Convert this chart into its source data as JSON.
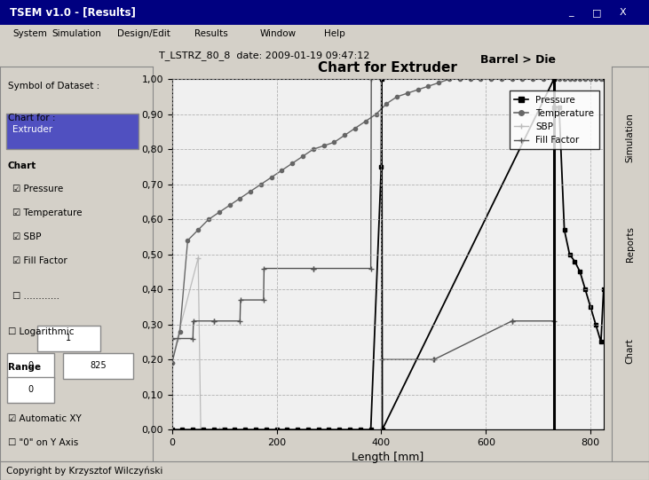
{
  "title": "Chart for Extruder",
  "subtitle": "T_LSTRZ_80_8  date: 2009-01-19 09:47:12",
  "xlabel": "Length [mm]",
  "barrel_die_label": "Barrel > Die",
  "barrel_line_x": 730,
  "xlim": [
    0,
    825
  ],
  "ylim": [
    0.0,
    1.0
  ],
  "yticks": [
    0.0,
    0.1,
    0.2,
    0.3,
    0.4,
    0.5,
    0.6,
    0.7,
    0.8,
    0.9,
    1.0
  ],
  "ytick_labels": [
    "0,00",
    "0,10",
    "0,20",
    "0,30",
    "0,40",
    "0,50",
    "0,60",
    "0,70",
    "0,80",
    "0,90",
    "1,00"
  ],
  "xticks": [
    0,
    200,
    400,
    600,
    800
  ],
  "bg_color": "#d4d0c8",
  "plot_bg_color": "#f0f0f0",
  "grid_color": "#aaaaaa",
  "pressure_color": "#000000",
  "temperature_color": "#666666",
  "sbp_color": "#bbbbbb",
  "fill_factor_color": "#555555",
  "pressure_x": [
    0,
    20,
    40,
    60,
    80,
    100,
    120,
    140,
    160,
    180,
    200,
    220,
    240,
    260,
    280,
    300,
    320,
    340,
    360,
    380,
    400,
    401,
    402,
    730,
    731,
    740,
    750,
    760,
    770,
    780,
    790,
    800,
    810,
    820,
    825
  ],
  "pressure_y": [
    0.0,
    0.0,
    0.0,
    0.0,
    0.0,
    0.0,
    0.0,
    0.0,
    0.0,
    0.0,
    0.0,
    0.0,
    0.0,
    0.0,
    0.0,
    0.0,
    0.0,
    0.0,
    0.0,
    0.0,
    0.75,
    1.0,
    0.0,
    1.0,
    0.92,
    0.92,
    0.57,
    0.5,
    0.48,
    0.45,
    0.4,
    0.35,
    0.3,
    0.25,
    0.4
  ],
  "temperature_x": [
    0,
    15,
    30,
    50,
    70,
    90,
    110,
    130,
    150,
    170,
    190,
    210,
    230,
    250,
    270,
    290,
    310,
    330,
    350,
    370,
    390,
    410,
    430,
    450,
    470,
    490,
    510,
    530,
    550,
    570,
    590,
    610,
    630,
    650,
    670,
    690,
    710,
    730,
    740,
    750,
    760,
    770,
    780,
    790,
    800,
    810,
    820,
    825
  ],
  "temperature_y": [
    0.19,
    0.28,
    0.54,
    0.57,
    0.6,
    0.62,
    0.64,
    0.66,
    0.68,
    0.7,
    0.72,
    0.74,
    0.76,
    0.78,
    0.8,
    0.81,
    0.82,
    0.84,
    0.86,
    0.88,
    0.9,
    0.93,
    0.95,
    0.96,
    0.97,
    0.98,
    0.99,
    1.0,
    1.0,
    1.0,
    1.0,
    1.0,
    1.0,
    1.0,
    1.0,
    1.0,
    1.0,
    1.0,
    1.0,
    1.0,
    1.0,
    1.0,
    1.0,
    1.0,
    1.0,
    1.0,
    1.0,
    1.0
  ],
  "sbp_x": [
    0,
    10,
    50,
    55,
    90,
    95,
    825
  ],
  "sbp_y": [
    0.19,
    0.26,
    0.49,
    0.0,
    0.0,
    0.0,
    0.0
  ],
  "fill_factor_x": [
    0,
    40,
    41,
    80,
    81,
    130,
    131,
    175,
    176,
    270,
    271,
    380,
    381,
    400,
    401,
    500,
    501,
    650,
    651,
    730
  ],
  "fill_factor_y": [
    0.26,
    0.26,
    0.31,
    0.31,
    0.31,
    0.31,
    0.37,
    0.37,
    0.46,
    0.46,
    0.46,
    0.46,
    1.0,
    1.0,
    0.2,
    0.2,
    0.2,
    0.31,
    0.31,
    0.31
  ],
  "legend_labels": [
    "Pressure",
    "Temperature",
    "SBP",
    "Fill Factor"
  ],
  "legend_markers": [
    "s",
    "o",
    "+",
    "+"
  ],
  "legend_colors": [
    "#000000",
    "#666666",
    "#bbbbbb",
    "#555555"
  ]
}
